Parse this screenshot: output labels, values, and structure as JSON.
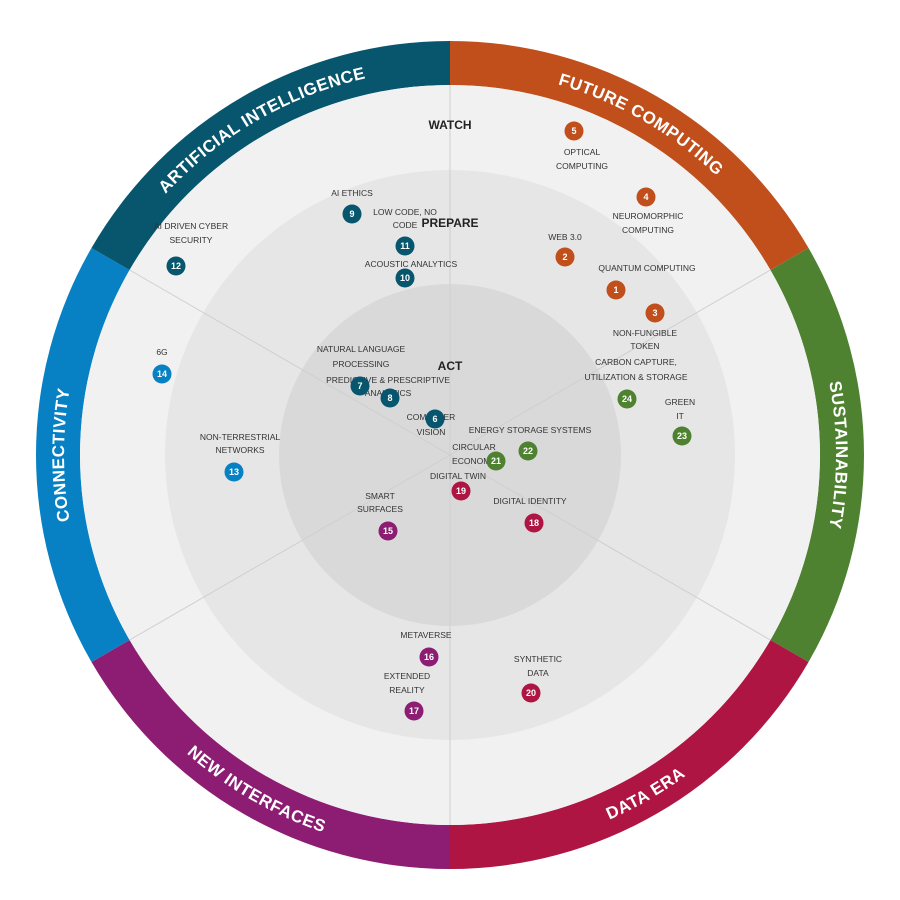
{
  "rings": {
    "outer_label": "WATCH",
    "middle_label": "PREPARE",
    "inner_label": "ACT"
  },
  "segments": [
    {
      "id": "artificial-intelligence",
      "label": "ARTIFICIAL INTELLIGENCE",
      "color": "#07566e"
    },
    {
      "id": "future-computing",
      "label": "FUTURE COMPUTING",
      "color": "#c04f1c"
    },
    {
      "id": "sustainability",
      "label": "SUSTAINABILITY",
      "color": "#4f8230"
    },
    {
      "id": "data-era",
      "label": "DATA ERA",
      "color": "#ae1542"
    },
    {
      "id": "new-interfaces",
      "label": "NEW INTERFACES",
      "color": "#8d1d72"
    },
    {
      "id": "connectivity",
      "label": "CONNECTIVITY",
      "color": "#0781c3"
    }
  ],
  "technologies": [
    {
      "num": "1",
      "name": "QUANTUM COMPUTING",
      "segment": "future-computing"
    },
    {
      "num": "2",
      "name": "WEB 3.0",
      "segment": "future-computing"
    },
    {
      "num": "3",
      "name": "NON-FUNGIBLE TOKEN",
      "segment": "future-computing"
    },
    {
      "num": "4",
      "name": "NEUROMORPHIC COMPUTING",
      "segment": "future-computing"
    },
    {
      "num": "5",
      "name": "OPTICAL COMPUTING",
      "segment": "future-computing"
    },
    {
      "num": "6",
      "name": "COMPUTER VISION",
      "segment": "artificial-intelligence"
    },
    {
      "num": "7",
      "name": "NATURAL LANGUAGE PROCESSING",
      "segment": "artificial-intelligence"
    },
    {
      "num": "8",
      "name": "PREDICTIVE & PRESCRIPTIVE ANALYTICS",
      "segment": "artificial-intelligence"
    },
    {
      "num": "9",
      "name": "AI ETHICS",
      "segment": "artificial-intelligence"
    },
    {
      "num": "10",
      "name": "ACOUSTIC ANALYTICS",
      "segment": "artificial-intelligence"
    },
    {
      "num": "11",
      "name": "LOW CODE, NO CODE",
      "segment": "artificial-intelligence"
    },
    {
      "num": "12",
      "name": "AI DRIVEN CYBER SECURITY",
      "segment": "artificial-intelligence"
    },
    {
      "num": "13",
      "name": "NON-TERRESTRIAL NETWORKS",
      "segment": "connectivity"
    },
    {
      "num": "14",
      "name": "6G",
      "segment": "connectivity"
    },
    {
      "num": "15",
      "name": "SMART SURFACES",
      "segment": "new-interfaces"
    },
    {
      "num": "16",
      "name": "METAVERSE",
      "segment": "new-interfaces"
    },
    {
      "num": "17",
      "name": "EXTENDED REALITY",
      "segment": "new-interfaces"
    },
    {
      "num": "18",
      "name": "DIGITAL IDENTITY",
      "segment": "data-era"
    },
    {
      "num": "19",
      "name": "DIGITAL TWIN",
      "segment": "data-era"
    },
    {
      "num": "20",
      "name": "SYNTHETIC DATA",
      "segment": "data-era"
    },
    {
      "num": "21",
      "name": "CIRCULAR ECONOMY",
      "segment": "sustainability"
    },
    {
      "num": "22",
      "name": "ENERGY STORAGE SYSTEMS",
      "segment": "sustainability"
    },
    {
      "num": "23",
      "name": "GREEN IT",
      "segment": "sustainability"
    },
    {
      "num": "24",
      "name": "CARBON CAPTURE, UTILIZATION & STORAGE",
      "segment": "sustainability"
    }
  ]
}
